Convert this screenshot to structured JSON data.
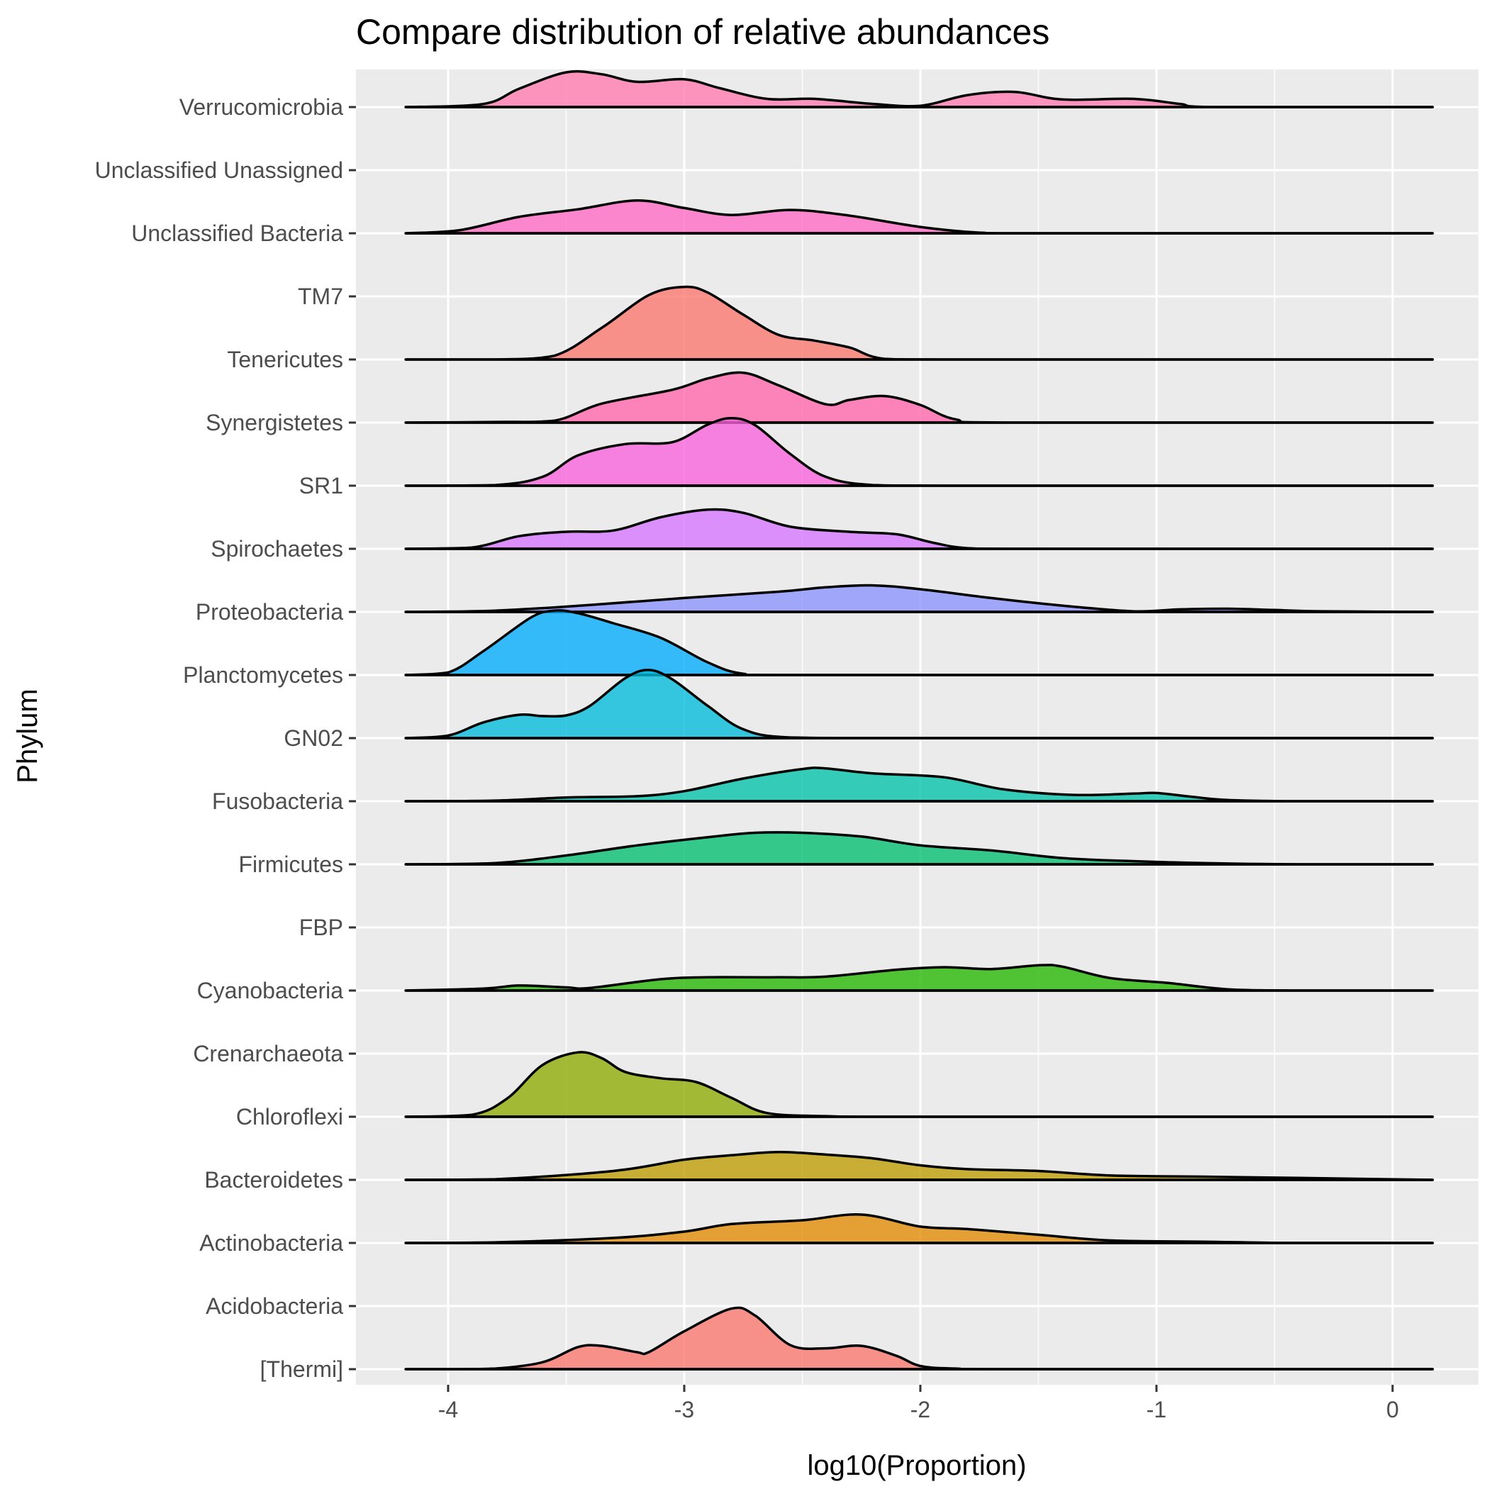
{
  "chart_data": {
    "type": "ridgeline",
    "title": "Compare distribution of relative abundances",
    "xlabel": "log10(Proportion)",
    "ylabel": "Phylum",
    "xlim": [
      -4.4,
      0.4
    ],
    "x_ticks": [
      -4,
      -3,
      -2,
      -1,
      0
    ],
    "x_tick_labels": [
      "-4",
      "-3",
      "-2",
      "-1",
      "0"
    ],
    "grid": true,
    "legend": "none",
    "density_range": [
      -4.18,
      0.17
    ],
    "categories": [
      "[Thermi]",
      "Acidobacteria",
      "Actinobacteria",
      "Bacteroidetes",
      "Chloroflexi",
      "Crenarchaeota",
      "Cyanobacteria",
      "FBP",
      "Firmicutes",
      "Fusobacteria",
      "GN02",
      "Planctomycetes",
      "Proteobacteria",
      "Spirochaetes",
      "SR1",
      "Synergistetes",
      "Tenericutes",
      "TM7",
      "Unclassified Bacteria",
      "Unclassified Unassigned",
      "Verrucomicrobia"
    ],
    "series": [
      {
        "category": "[Thermi]",
        "color": "#F8766D",
        "density": [
          [
            -4.18,
            0
          ],
          [
            -4.0,
            0
          ],
          [
            -3.8,
            0.01
          ],
          [
            -3.6,
            0.11
          ],
          [
            -3.45,
            0.35
          ],
          [
            -3.35,
            0.37
          ],
          [
            -3.2,
            0.27
          ],
          [
            -3.15,
            0.27
          ],
          [
            -3.0,
            0.6
          ],
          [
            -2.8,
            0.96
          ],
          [
            -2.7,
            0.85
          ],
          [
            -2.55,
            0.38
          ],
          [
            -2.4,
            0.33
          ],
          [
            -2.25,
            0.37
          ],
          [
            -2.1,
            0.21
          ],
          [
            -2.0,
            0.05
          ],
          [
            -1.85,
            0.01
          ],
          [
            -1.6,
            0
          ],
          [
            0.17,
            0
          ]
        ]
      },
      {
        "category": "Actinobacteria",
        "color": "#E18A00",
        "density": [
          [
            -4.18,
            0
          ],
          [
            -3.8,
            0.01
          ],
          [
            -3.3,
            0.08
          ],
          [
            -3.0,
            0.18
          ],
          [
            -2.8,
            0.3
          ],
          [
            -2.5,
            0.36
          ],
          [
            -2.25,
            0.45
          ],
          [
            -2.0,
            0.26
          ],
          [
            -1.8,
            0.22
          ],
          [
            -1.5,
            0.13
          ],
          [
            -1.2,
            0.04
          ],
          [
            -0.8,
            0.02
          ],
          [
            -0.4,
            0
          ],
          [
            0.17,
            0
          ]
        ]
      },
      {
        "category": "Bacteroidetes",
        "color": "#BE9C00",
        "density": [
          [
            -4.18,
            0
          ],
          [
            -3.8,
            0.01
          ],
          [
            -3.3,
            0.14
          ],
          [
            -3.0,
            0.32
          ],
          [
            -2.8,
            0.39
          ],
          [
            -2.6,
            0.44
          ],
          [
            -2.4,
            0.4
          ],
          [
            -2.2,
            0.34
          ],
          [
            -2.0,
            0.23
          ],
          [
            -1.8,
            0.17
          ],
          [
            -1.5,
            0.14
          ],
          [
            -1.2,
            0.07
          ],
          [
            -0.8,
            0.05
          ],
          [
            -0.4,
            0.03
          ],
          [
            0.17,
            0
          ]
        ]
      },
      {
        "category": "Chloroflexi",
        "color": "#8CAB00",
        "density": [
          [
            -4.18,
            0
          ],
          [
            -3.9,
            0.03
          ],
          [
            -3.75,
            0.29
          ],
          [
            -3.6,
            0.82
          ],
          [
            -3.45,
            1.02
          ],
          [
            -3.35,
            0.93
          ],
          [
            -3.25,
            0.71
          ],
          [
            -3.1,
            0.61
          ],
          [
            -2.95,
            0.55
          ],
          [
            -2.8,
            0.3
          ],
          [
            -2.65,
            0.06
          ],
          [
            -2.4,
            0.01
          ],
          [
            -2.0,
            0
          ],
          [
            0.17,
            0
          ]
        ]
      },
      {
        "category": "Cyanobacteria",
        "color": "#24B700",
        "density": [
          [
            -4.18,
            0
          ],
          [
            -3.85,
            0.03
          ],
          [
            -3.7,
            0.08
          ],
          [
            -3.5,
            0.05
          ],
          [
            -3.4,
            0.04
          ],
          [
            -3.1,
            0.18
          ],
          [
            -2.9,
            0.21
          ],
          [
            -2.6,
            0.21
          ],
          [
            -2.4,
            0.22
          ],
          [
            -2.1,
            0.33
          ],
          [
            -1.9,
            0.37
          ],
          [
            -1.7,
            0.34
          ],
          [
            -1.5,
            0.4
          ],
          [
            -1.4,
            0.38
          ],
          [
            -1.2,
            0.2
          ],
          [
            -0.95,
            0.12
          ],
          [
            -0.7,
            0.02
          ],
          [
            -0.4,
            0
          ],
          [
            0.17,
            0
          ]
        ]
      },
      {
        "category": "Firmicutes",
        "color": "#00BE70",
        "density": [
          [
            -4.18,
            0
          ],
          [
            -3.8,
            0.02
          ],
          [
            -3.5,
            0.14
          ],
          [
            -3.2,
            0.3
          ],
          [
            -2.9,
            0.43
          ],
          [
            -2.7,
            0.5
          ],
          [
            -2.5,
            0.5
          ],
          [
            -2.25,
            0.44
          ],
          [
            -2.0,
            0.3
          ],
          [
            -1.7,
            0.22
          ],
          [
            -1.4,
            0.1
          ],
          [
            -1.1,
            0.05
          ],
          [
            -0.8,
            0.02
          ],
          [
            -0.4,
            0
          ],
          [
            0.17,
            0
          ]
        ]
      },
      {
        "category": "Fusobacteria",
        "color": "#00C1AB",
        "density": [
          [
            -4.18,
            0
          ],
          [
            -3.8,
            0.01
          ],
          [
            -3.5,
            0.06
          ],
          [
            -3.2,
            0.08
          ],
          [
            -3.0,
            0.16
          ],
          [
            -2.75,
            0.36
          ],
          [
            -2.5,
            0.51
          ],
          [
            -2.4,
            0.52
          ],
          [
            -2.2,
            0.44
          ],
          [
            -1.9,
            0.38
          ],
          [
            -1.65,
            0.19
          ],
          [
            -1.35,
            0.1
          ],
          [
            -1.1,
            0.12
          ],
          [
            -1.0,
            0.13
          ],
          [
            -0.85,
            0.07
          ],
          [
            -0.7,
            0.02
          ],
          [
            -0.4,
            0
          ],
          [
            0.17,
            0
          ]
        ]
      },
      {
        "category": "GN02",
        "color": "#00BBDA",
        "density": [
          [
            -4.18,
            0
          ],
          [
            -4.0,
            0.04
          ],
          [
            -3.85,
            0.25
          ],
          [
            -3.7,
            0.37
          ],
          [
            -3.6,
            0.35
          ],
          [
            -3.5,
            0.36
          ],
          [
            -3.4,
            0.51
          ],
          [
            -3.25,
            0.95
          ],
          [
            -3.15,
            1.08
          ],
          [
            -3.05,
            0.93
          ],
          [
            -2.9,
            0.51
          ],
          [
            -2.75,
            0.14
          ],
          [
            -2.55,
            0.01
          ],
          [
            -2.0,
            0
          ],
          [
            0.17,
            0
          ]
        ]
      },
      {
        "category": "Planctomycetes",
        "color": "#00ACFC",
        "density": [
          [
            -4.18,
            0
          ],
          [
            -4.0,
            0.04
          ],
          [
            -3.85,
            0.38
          ],
          [
            -3.65,
            0.91
          ],
          [
            -3.55,
            1.02
          ],
          [
            -3.45,
            0.98
          ],
          [
            -3.3,
            0.82
          ],
          [
            -3.1,
            0.59
          ],
          [
            -2.9,
            0.2
          ],
          [
            -2.75,
            0.02
          ],
          [
            -2.5,
            0
          ],
          [
            0.17,
            0
          ]
        ]
      },
      {
        "category": "Proteobacteria",
        "color": "#8B93FF",
        "density": [
          [
            -4.18,
            0
          ],
          [
            -3.8,
            0.02
          ],
          [
            -3.4,
            0.11
          ],
          [
            -3.0,
            0.22
          ],
          [
            -2.6,
            0.32
          ],
          [
            -2.4,
            0.39
          ],
          [
            -2.2,
            0.42
          ],
          [
            -2.0,
            0.36
          ],
          [
            -1.7,
            0.22
          ],
          [
            -1.4,
            0.1
          ],
          [
            -1.1,
            0.01
          ],
          [
            -0.9,
            0.04
          ],
          [
            -0.7,
            0.05
          ],
          [
            -0.5,
            0.03
          ],
          [
            -0.3,
            0.01
          ],
          [
            0.17,
            0
          ]
        ]
      },
      {
        "category": "Spirochaetes",
        "color": "#D575FE",
        "density": [
          [
            -4.18,
            0
          ],
          [
            -3.9,
            0.02
          ],
          [
            -3.7,
            0.2
          ],
          [
            -3.5,
            0.27
          ],
          [
            -3.3,
            0.29
          ],
          [
            -3.1,
            0.5
          ],
          [
            -2.9,
            0.62
          ],
          [
            -2.75,
            0.57
          ],
          [
            -2.55,
            0.35
          ],
          [
            -2.3,
            0.27
          ],
          [
            -2.1,
            0.23
          ],
          [
            -1.95,
            0.1
          ],
          [
            -1.8,
            0.01
          ],
          [
            -1.5,
            0
          ],
          [
            0.17,
            0
          ]
        ]
      },
      {
        "category": "SR1",
        "color": "#F962DD",
        "density": [
          [
            -4.18,
            0
          ],
          [
            -3.8,
            0.01
          ],
          [
            -3.6,
            0.14
          ],
          [
            -3.45,
            0.48
          ],
          [
            -3.25,
            0.66
          ],
          [
            -3.05,
            0.69
          ],
          [
            -2.9,
            0.97
          ],
          [
            -2.8,
            1.07
          ],
          [
            -2.7,
            0.96
          ],
          [
            -2.55,
            0.5
          ],
          [
            -2.4,
            0.14
          ],
          [
            -2.2,
            0.01
          ],
          [
            -1.8,
            0
          ],
          [
            0.17,
            0
          ]
        ]
      },
      {
        "category": "Synergistetes",
        "color": "#FF65AC",
        "density": [
          [
            -4.18,
            0
          ],
          [
            -3.8,
            0.01
          ],
          [
            -3.55,
            0.03
          ],
          [
            -3.35,
            0.3
          ],
          [
            -3.05,
            0.52
          ],
          [
            -2.9,
            0.7
          ],
          [
            -2.75,
            0.79
          ],
          [
            -2.6,
            0.59
          ],
          [
            -2.4,
            0.29
          ],
          [
            -2.3,
            0.36
          ],
          [
            -2.15,
            0.42
          ],
          [
            -2.0,
            0.28
          ],
          [
            -1.85,
            0.05
          ],
          [
            -1.6,
            0
          ],
          [
            0.17,
            0
          ]
        ]
      },
      {
        "category": "Tenericutes",
        "color": "#F8766D",
        "density": [
          [
            -4.18,
            0
          ],
          [
            -3.8,
            0
          ],
          [
            -3.55,
            0.06
          ],
          [
            -3.35,
            0.5
          ],
          [
            -3.15,
            1.02
          ],
          [
            -3.0,
            1.15
          ],
          [
            -2.9,
            1.06
          ],
          [
            -2.75,
            0.71
          ],
          [
            -2.6,
            0.39
          ],
          [
            -2.45,
            0.3
          ],
          [
            -2.3,
            0.19
          ],
          [
            -2.15,
            0.01
          ],
          [
            -1.8,
            0
          ],
          [
            0.17,
            0
          ]
        ]
      },
      {
        "category": "Unclassified Bacteria",
        "color": "#FF69C4",
        "density": [
          [
            -4.18,
            0
          ],
          [
            -3.95,
            0.05
          ],
          [
            -3.7,
            0.26
          ],
          [
            -3.45,
            0.38
          ],
          [
            -3.2,
            0.52
          ],
          [
            -3.0,
            0.4
          ],
          [
            -2.8,
            0.29
          ],
          [
            -2.55,
            0.37
          ],
          [
            -2.3,
            0.28
          ],
          [
            -2.0,
            0.1
          ],
          [
            -1.75,
            0.01
          ],
          [
            -1.5,
            0
          ],
          [
            0.17,
            0
          ]
        ]
      },
      {
        "category": "Verrucomicrobia",
        "color": "#FF7AAE",
        "density": [
          [
            -4.18,
            0
          ],
          [
            -3.85,
            0.05
          ],
          [
            -3.7,
            0.29
          ],
          [
            -3.5,
            0.55
          ],
          [
            -3.35,
            0.52
          ],
          [
            -3.2,
            0.4
          ],
          [
            -3.0,
            0.44
          ],
          [
            -2.85,
            0.3
          ],
          [
            -2.65,
            0.13
          ],
          [
            -2.45,
            0.13
          ],
          [
            -2.2,
            0.05
          ],
          [
            -2.0,
            0.02
          ],
          [
            -1.8,
            0.19
          ],
          [
            -1.6,
            0.24
          ],
          [
            -1.4,
            0.12
          ],
          [
            -1.1,
            0.13
          ],
          [
            -0.9,
            0.05
          ],
          [
            -0.75,
            0
          ],
          [
            0.17,
            0
          ]
        ]
      }
    ]
  }
}
